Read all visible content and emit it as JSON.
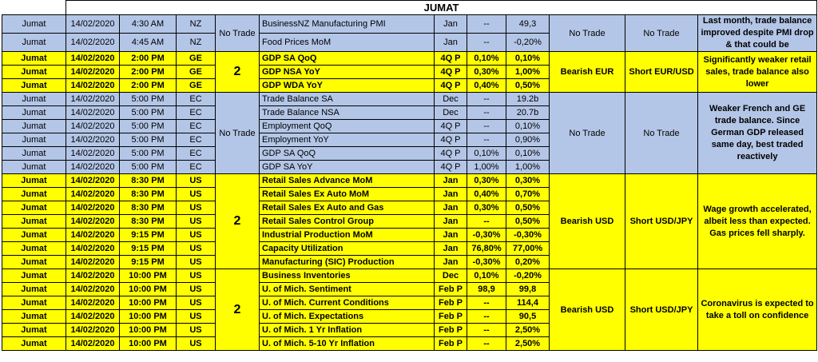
{
  "title": "JUMAT",
  "groups": [
    {
      "color": "blue",
      "impact": "No Trade",
      "bias": "No Trade",
      "trade": "No Trade",
      "comment": "Last month, trade balance improved despite PMI drop & that could be",
      "rows": [
        {
          "day": "Jumat",
          "date": "14/02/2020",
          "time": "4:30 AM",
          "cur": "NZ",
          "event": "BusinessNZ Manufacturing PMI",
          "period": "Jan",
          "forecast": "--",
          "previous": "49,3"
        },
        {
          "day": "Jumat",
          "date": "14/02/2020",
          "time": "4:45 AM",
          "cur": "NZ",
          "event": "Food Prices MoM",
          "period": "Jan",
          "forecast": "--",
          "previous": "-0,20%"
        }
      ]
    },
    {
      "color": "yellow",
      "impact": "2",
      "bias": "Bearish EUR",
      "trade": "Short EUR/USD",
      "comment": "Significantly weaker retail sales, trade balance also lower",
      "rows": [
        {
          "day": "Jumat",
          "date": "14/02/2020",
          "time": "2:00 PM",
          "cur": "GE",
          "event": "GDP SA QoQ",
          "period": "4Q P",
          "forecast": "0,10%",
          "previous": "0,10%"
        },
        {
          "day": "Jumat",
          "date": "14/02/2020",
          "time": "2:00 PM",
          "cur": "GE",
          "event": "GDP NSA YoY",
          "period": "4Q P",
          "forecast": "0,30%",
          "previous": "1,00%"
        },
        {
          "day": "Jumat",
          "date": "14/02/2020",
          "time": "2:00 PM",
          "cur": "GE",
          "event": "GDP WDA YoY",
          "period": "4Q P",
          "forecast": "0,40%",
          "previous": "0,50%"
        }
      ]
    },
    {
      "color": "blue",
      "impact": "No Trade",
      "bias": "No Trade",
      "trade": "No Trade",
      "comment": "Weaker French and GE trade balance. Since German GDP released same day, best traded reactively",
      "rows": [
        {
          "day": "Jumat",
          "date": "14/02/2020",
          "time": "5:00 PM",
          "cur": "EC",
          "event": "Trade Balance SA",
          "period": "Dec",
          "forecast": "--",
          "previous": "19.2b"
        },
        {
          "day": "Jumat",
          "date": "14/02/2020",
          "time": "5:00 PM",
          "cur": "EC",
          "event": "Trade Balance NSA",
          "period": "Dec",
          "forecast": "--",
          "previous": "20.7b"
        },
        {
          "day": "Jumat",
          "date": "14/02/2020",
          "time": "5:00 PM",
          "cur": "EC",
          "event": "Employment QoQ",
          "period": "4Q P",
          "forecast": "--",
          "previous": "0,10%"
        },
        {
          "day": "Jumat",
          "date": "14/02/2020",
          "time": "5:00 PM",
          "cur": "EC",
          "event": "Employment YoY",
          "period": "4Q P",
          "forecast": "--",
          "previous": "0,90%"
        },
        {
          "day": "Jumat",
          "date": "14/02/2020",
          "time": "5:00 PM",
          "cur": "EC",
          "event": "GDP SA QoQ",
          "period": "4Q P",
          "forecast": "0,10%",
          "previous": "0,10%"
        },
        {
          "day": "Jumat",
          "date": "14/02/2020",
          "time": "5:00 PM",
          "cur": "EC",
          "event": "GDP SA YoY",
          "period": "4Q P",
          "forecast": "1,00%",
          "previous": "1,00%"
        }
      ]
    },
    {
      "color": "yellow",
      "impact": "2",
      "bias": "Bearish USD",
      "trade": "Short USD/JPY",
      "comment": "Wage growth accelerated, albeit less than expected. Gas prices fell sharply.",
      "rows": [
        {
          "day": "Jumat",
          "date": "14/02/2020",
          "time": "8:30 PM",
          "cur": "US",
          "event": "Retail Sales Advance MoM",
          "period": "Jan",
          "forecast": "0,30%",
          "previous": "0,30%"
        },
        {
          "day": "Jumat",
          "date": "14/02/2020",
          "time": "8:30 PM",
          "cur": "US",
          "event": "Retail Sales Ex Auto MoM",
          "period": "Jan",
          "forecast": "0,40%",
          "previous": "0,70%"
        },
        {
          "day": "Jumat",
          "date": "14/02/2020",
          "time": "8:30 PM",
          "cur": "US",
          "event": "Retail Sales Ex Auto and Gas",
          "period": "Jan",
          "forecast": "0,30%",
          "previous": "0,50%"
        },
        {
          "day": "Jumat",
          "date": "14/02/2020",
          "time": "8:30 PM",
          "cur": "US",
          "event": "Retail Sales Control Group",
          "period": "Jan",
          "forecast": "--",
          "previous": "0,50%"
        },
        {
          "day": "Jumat",
          "date": "14/02/2020",
          "time": "9:15 PM",
          "cur": "US",
          "event": "Industrial Production MoM",
          "period": "Jan",
          "forecast": "-0,30%",
          "previous": "-0,30%"
        },
        {
          "day": "Jumat",
          "date": "14/02/2020",
          "time": "9:15 PM",
          "cur": "US",
          "event": "Capacity Utilization",
          "period": "Jan",
          "forecast": "76,80%",
          "previous": "77,00%"
        },
        {
          "day": "Jumat",
          "date": "14/02/2020",
          "time": "9:15 PM",
          "cur": "US",
          "event": "Manufacturing (SIC) Production",
          "period": "Jan",
          "forecast": "-0,30%",
          "previous": "0,20%"
        }
      ]
    },
    {
      "color": "yellow",
      "impact": "2",
      "bias": "Bearish USD",
      "trade": "Short USD/JPY",
      "comment": "Coronavirus is expected to take a toll on confidence",
      "rows": [
        {
          "day": "Jumat",
          "date": "14/02/2020",
          "time": "10:00 PM",
          "cur": "US",
          "event": "Business Inventories",
          "period": "Dec",
          "forecast": "0,10%",
          "previous": "-0,20%"
        },
        {
          "day": "Jumat",
          "date": "14/02/2020",
          "time": "10:00 PM",
          "cur": "US",
          "event": "U. of Mich. Sentiment",
          "period": "Feb P",
          "forecast": "98,9",
          "previous": "99,8"
        },
        {
          "day": "Jumat",
          "date": "14/02/2020",
          "time": "10:00 PM",
          "cur": "US",
          "event": "U. of Mich. Current Conditions",
          "period": "Feb P",
          "forecast": "--",
          "previous": "114,4"
        },
        {
          "day": "Jumat",
          "date": "14/02/2020",
          "time": "10:00 PM",
          "cur": "US",
          "event": "U. of Mich. Expectations",
          "period": "Feb P",
          "forecast": "--",
          "previous": "90,5"
        },
        {
          "day": "Jumat",
          "date": "14/02/2020",
          "time": "10:00 PM",
          "cur": "US",
          "event": "U. of Mich. 1 Yr Inflation",
          "period": "Feb P",
          "forecast": "--",
          "previous": "2,50%"
        },
        {
          "day": "Jumat",
          "date": "14/02/2020",
          "time": "10:00 PM",
          "cur": "US",
          "event": "U. of Mich. 5-10 Yr Inflation",
          "period": "Feb P",
          "forecast": "--",
          "previous": "2,50%"
        }
      ]
    }
  ]
}
